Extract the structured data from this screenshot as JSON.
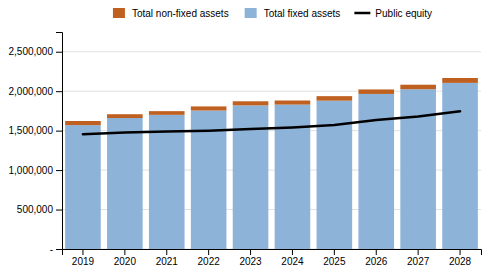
{
  "chart_data": {
    "type": "bar",
    "stacked": true,
    "categories": [
      "2019",
      "2020",
      "2021",
      "2022",
      "2023",
      "2024",
      "2025",
      "2026",
      "2027",
      "2028"
    ],
    "series": [
      {
        "name": "Total fixed assets",
        "color": "#8db3d9",
        "values": [
          1570000,
          1660000,
          1700000,
          1755000,
          1820000,
          1830000,
          1880000,
          1965000,
          2025000,
          2105000
        ]
      },
      {
        "name": "Total non-fixed assets",
        "color": "#bf6020",
        "values": [
          52000,
          48000,
          47000,
          52000,
          52000,
          52000,
          57000,
          57000,
          57000,
          62000
        ]
      },
      {
        "name": "Public equity",
        "type": "line",
        "color": "#000000",
        "values": [
          1455000,
          1475000,
          1488000,
          1500000,
          1520000,
          1540000,
          1570000,
          1635000,
          1680000,
          1745000
        ]
      }
    ],
    "ylim": [
      0,
      2750000
    ],
    "yticks": [
      {
        "value": 0,
        "label": "-"
      },
      {
        "value": 500000,
        "label": "500,000"
      },
      {
        "value": 1000000,
        "label": "1,000,000"
      },
      {
        "value": 1500000,
        "label": "1,500,000"
      },
      {
        "value": 2000000,
        "label": "2,000,000"
      },
      {
        "value": 2500000,
        "label": "2,500,000"
      }
    ],
    "grid": true,
    "legend": "top"
  }
}
